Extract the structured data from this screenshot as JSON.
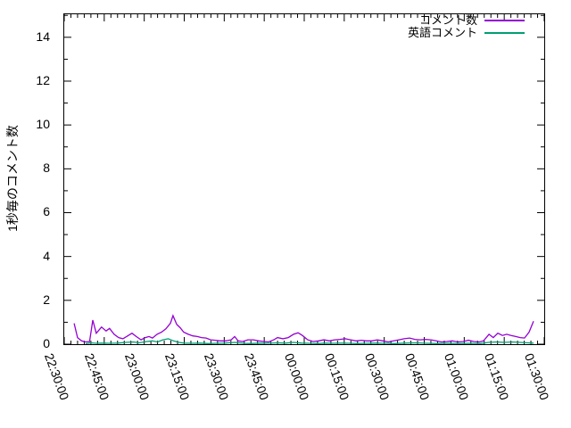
{
  "figure": {
    "background": "#ffffff",
    "border_color": "#000000"
  },
  "chart_data": {
    "type": "line",
    "title": "",
    "xlabel": "",
    "ylabel": "1秒毎のコメント数",
    "ylim": [
      0,
      15.05
    ],
    "yticks": [
      0,
      2,
      4,
      6,
      8,
      10,
      12,
      14
    ],
    "y_minor_ticks": [
      1,
      3,
      5,
      7,
      9,
      11,
      13,
      15
    ],
    "x_minutes_range": [
      0,
      180
    ],
    "x_major_step_minutes": 15,
    "x_minor_step_minutes": 2.5,
    "x_tick_labels": [
      "22:30:00",
      "22:45:00",
      "23:00:00",
      "23:15:00",
      "23:30:00",
      "23:45:00",
      "00:00:00",
      "00:15:00",
      "00:30:00",
      "00:45:00",
      "01:00:00",
      "01:15:00",
      "01:30:00"
    ],
    "grid": false,
    "legend": {
      "position": "top-right-inside"
    },
    "series": [
      {
        "name": "コメント数",
        "color": "#9400d3",
        "points": [
          [
            3.7,
            0.95
          ],
          [
            5,
            0.3
          ],
          [
            6.5,
            0.15
          ],
          [
            8,
            0.1
          ],
          [
            9.5,
            0.12
          ],
          [
            10.7,
            1.1
          ],
          [
            12,
            0.5
          ],
          [
            14,
            0.78
          ],
          [
            15.7,
            0.6
          ],
          [
            17,
            0.72
          ],
          [
            18.7,
            0.45
          ],
          [
            20.4,
            0.3
          ],
          [
            22,
            0.25
          ],
          [
            23.8,
            0.38
          ],
          [
            25.4,
            0.5
          ],
          [
            27,
            0.35
          ],
          [
            28.8,
            0.2
          ],
          [
            30.4,
            0.3
          ],
          [
            31.8,
            0.35
          ],
          [
            33.1,
            0.28
          ],
          [
            34.8,
            0.45
          ],
          [
            36.5,
            0.55
          ],
          [
            38.1,
            0.7
          ],
          [
            39.8,
            0.95
          ],
          [
            40.8,
            1.3
          ],
          [
            42.2,
            0.9
          ],
          [
            43.5,
            0.75
          ],
          [
            44.8,
            0.55
          ],
          [
            46.5,
            0.45
          ],
          [
            48.2,
            0.38
          ],
          [
            49.9,
            0.35
          ],
          [
            51.5,
            0.3
          ],
          [
            53.2,
            0.28
          ],
          [
            54.9,
            0.2
          ],
          [
            56.6,
            0.18
          ],
          [
            58.6,
            0.15
          ],
          [
            60.6,
            0.15
          ],
          [
            62.6,
            0.2
          ],
          [
            63.9,
            0.35
          ],
          [
            65.2,
            0.15
          ],
          [
            66.9,
            0.12
          ],
          [
            68.9,
            0.2
          ],
          [
            70.9,
            0.2
          ],
          [
            72.9,
            0.15
          ],
          [
            74.9,
            0.12
          ],
          [
            76.6,
            0.1
          ],
          [
            78.6,
            0.2
          ],
          [
            80,
            0.3
          ],
          [
            82,
            0.25
          ],
          [
            84,
            0.3
          ],
          [
            86,
            0.45
          ],
          [
            87.7,
            0.52
          ],
          [
            89.3,
            0.4
          ],
          [
            91.3,
            0.2
          ],
          [
            93.3,
            0.12
          ],
          [
            95.4,
            0.15
          ],
          [
            97.4,
            0.2
          ],
          [
            99.4,
            0.15
          ],
          [
            101.4,
            0.2
          ],
          [
            103.4,
            0.22
          ],
          [
            105.4,
            0.25
          ],
          [
            107.4,
            0.2
          ],
          [
            109.4,
            0.15
          ],
          [
            111.4,
            0.18
          ],
          [
            113.4,
            0.15
          ],
          [
            115.4,
            0.15
          ],
          [
            117.4,
            0.2
          ],
          [
            119.5,
            0.15
          ],
          [
            121.5,
            0.1
          ],
          [
            123.5,
            0.15
          ],
          [
            125.5,
            0.2
          ],
          [
            127.5,
            0.25
          ],
          [
            129.5,
            0.28
          ],
          [
            131.5,
            0.22
          ],
          [
            133.5,
            0.2
          ],
          [
            135.5,
            0.22
          ],
          [
            137.5,
            0.2
          ],
          [
            139.5,
            0.15
          ],
          [
            141.5,
            0.1
          ],
          [
            143.5,
            0.12
          ],
          [
            145.5,
            0.15
          ],
          [
            147.6,
            0.1
          ],
          [
            149.6,
            0.12
          ],
          [
            151.6,
            0.18
          ],
          [
            153.6,
            0.12
          ],
          [
            155.6,
            0.1
          ],
          [
            157.2,
            0.15
          ],
          [
            159.3,
            0.45
          ],
          [
            160.9,
            0.3
          ],
          [
            162.6,
            0.5
          ],
          [
            164.3,
            0.4
          ],
          [
            165.9,
            0.45
          ],
          [
            167.6,
            0.4
          ],
          [
            169.3,
            0.35
          ],
          [
            171,
            0.3
          ],
          [
            172.6,
            0.28
          ],
          [
            174.3,
            0.55
          ],
          [
            176,
            1.05
          ]
        ]
      },
      {
        "name": "英語コメント",
        "color": "#009e73",
        "points": [
          [
            8,
            0.02
          ],
          [
            10,
            0.06
          ],
          [
            12,
            0.04
          ],
          [
            14,
            0.05
          ],
          [
            17,
            0.04
          ],
          [
            20,
            0.05
          ],
          [
            23,
            0.08
          ],
          [
            26,
            0.1
          ],
          [
            28,
            0.06
          ],
          [
            31,
            0.12
          ],
          [
            33,
            0.15
          ],
          [
            35,
            0.1
          ],
          [
            37,
            0.2
          ],
          [
            39,
            0.25
          ],
          [
            41,
            0.15
          ],
          [
            43,
            0.08
          ],
          [
            45,
            0.05
          ],
          [
            48,
            0.04
          ],
          [
            51,
            0.05
          ],
          [
            54,
            0.03
          ],
          [
            57,
            0.04
          ],
          [
            60,
            0.05
          ],
          [
            64,
            0.08
          ],
          [
            67,
            0.04
          ],
          [
            70,
            0.03
          ],
          [
            73,
            0.05
          ],
          [
            76,
            0.04
          ],
          [
            80,
            0.06
          ],
          [
            83,
            0.05
          ],
          [
            86,
            0.08
          ],
          [
            89,
            0.05
          ],
          [
            92,
            0.04
          ],
          [
            95,
            0.03
          ],
          [
            98,
            0.05
          ],
          [
            101,
            0.04
          ],
          [
            104,
            0.05
          ],
          [
            107,
            0.04
          ],
          [
            110,
            0.03
          ],
          [
            113,
            0.04
          ],
          [
            116,
            0.05
          ],
          [
            120,
            0.04
          ],
          [
            124,
            0.03
          ],
          [
            128,
            0.05
          ],
          [
            132,
            0.06
          ],
          [
            136,
            0.04
          ],
          [
            140,
            0.03
          ],
          [
            144,
            0.04
          ],
          [
            148,
            0.03
          ],
          [
            152,
            0.04
          ],
          [
            156,
            0.03
          ],
          [
            159,
            0.08
          ],
          [
            162,
            0.1
          ],
          [
            165,
            0.08
          ],
          [
            168,
            0.1
          ],
          [
            171,
            0.08
          ],
          [
            174,
            0.06
          ],
          [
            176,
            0.05
          ]
        ]
      }
    ]
  }
}
